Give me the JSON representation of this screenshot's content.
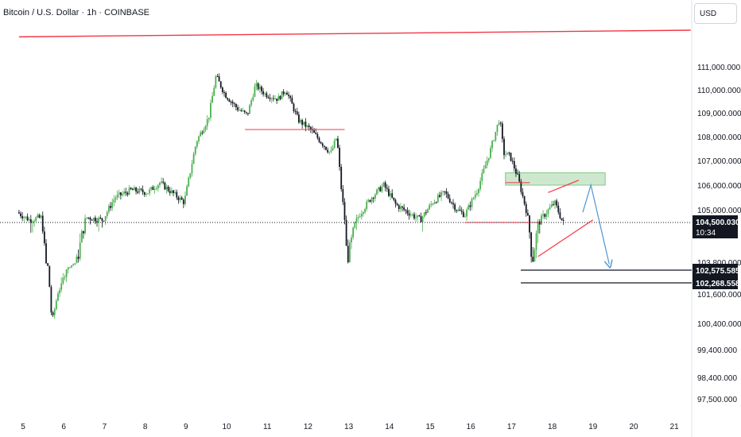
{
  "header": {
    "title": "Bitcoin / U.S. Dollar · 1h · COINBASE"
  },
  "currency": {
    "label": "USD"
  },
  "colors": {
    "up": "#26a69a",
    "down": "#131722",
    "up_body": "#4caf50",
    "trendline": "#f23645",
    "projection": "#5b9bd5",
    "zone": "#a5d6a7"
  },
  "chart_data": {
    "type": "candlestick",
    "symbol": "Bitcoin / U.S. Dollar",
    "interval": "1h",
    "exchange": "COINBASE",
    "x_labels": [
      "5",
      "6",
      "7",
      "8",
      "9",
      "10",
      "11",
      "12",
      "13",
      "14",
      "15",
      "16",
      "17",
      "18",
      "19",
      "20",
      "21"
    ],
    "y_tick_labels": [
      "111,000.000",
      "110,000.000",
      "109,000.000",
      "108,000.000",
      "107,000.000",
      "106,000.000",
      "105,000.000",
      "103,800.000",
      "101,600.000",
      "100,400.000",
      "99,400.000",
      "98,400.000",
      "97,500.000"
    ],
    "ylim": [
      97000,
      112500
    ],
    "price_path": [
      {
        "t": 4.9,
        "p": 104900
      },
      {
        "t": 5.2,
        "p": 104600
      },
      {
        "t": 5.5,
        "p": 104700
      },
      {
        "t": 5.65,
        "p": 103200
      },
      {
        "t": 5.75,
        "p": 100400
      },
      {
        "t": 5.9,
        "p": 101700
      },
      {
        "t": 6.2,
        "p": 103200
      },
      {
        "t": 6.6,
        "p": 104700
      },
      {
        "t": 7.0,
        "p": 104600
      },
      {
        "t": 7.3,
        "p": 105500
      },
      {
        "t": 7.7,
        "p": 105800
      },
      {
        "t": 8.1,
        "p": 105700
      },
      {
        "t": 8.4,
        "p": 106100
      },
      {
        "t": 8.7,
        "p": 105700
      },
      {
        "t": 9.0,
        "p": 105300
      },
      {
        "t": 9.3,
        "p": 107800
      },
      {
        "t": 9.6,
        "p": 108800
      },
      {
        "t": 9.78,
        "p": 110600
      },
      {
        "t": 10.0,
        "p": 109800
      },
      {
        "t": 10.3,
        "p": 109200
      },
      {
        "t": 10.55,
        "p": 108900
      },
      {
        "t": 10.75,
        "p": 110200
      },
      {
        "t": 11.0,
        "p": 109800
      },
      {
        "t": 11.3,
        "p": 109600
      },
      {
        "t": 11.5,
        "p": 110000
      },
      {
        "t": 11.8,
        "p": 108700
      },
      {
        "t": 12.1,
        "p": 108300
      },
      {
        "t": 12.4,
        "p": 107700
      },
      {
        "t": 12.6,
        "p": 107300
      },
      {
        "t": 12.75,
        "p": 108000
      },
      {
        "t": 12.85,
        "p": 106000
      },
      {
        "t": 12.95,
        "p": 104500
      },
      {
        "t": 13.0,
        "p": 103800
      },
      {
        "t": 13.3,
        "p": 104800
      },
      {
        "t": 13.6,
        "p": 105500
      },
      {
        "t": 13.9,
        "p": 106000
      },
      {
        "t": 14.2,
        "p": 105200
      },
      {
        "t": 14.5,
        "p": 104900
      },
      {
        "t": 14.8,
        "p": 104600
      },
      {
        "t": 15.1,
        "p": 105300
      },
      {
        "t": 15.4,
        "p": 105700
      },
      {
        "t": 15.7,
        "p": 105000
      },
      {
        "t": 15.9,
        "p": 104800
      },
      {
        "t": 16.2,
        "p": 105800
      },
      {
        "t": 16.5,
        "p": 107300
      },
      {
        "t": 16.75,
        "p": 108800
      },
      {
        "t": 16.85,
        "p": 107300
      },
      {
        "t": 17.0,
        "p": 107200
      },
      {
        "t": 17.2,
        "p": 106300
      },
      {
        "t": 17.4,
        "p": 105000
      },
      {
        "t": 17.55,
        "p": 103800
      },
      {
        "t": 17.7,
        "p": 104500
      },
      {
        "t": 17.9,
        "p": 104900
      },
      {
        "t": 18.1,
        "p": 105300
      },
      {
        "t": 18.3,
        "p": 104500
      }
    ],
    "annotations": {
      "long_trendline": {
        "start": {
          "t": 4.9,
          "p": 112350
        },
        "end": {
          "t": 21.4,
          "p": 112650
        }
      },
      "support_11": {
        "start": {
          "t": 10.45,
          "p": 108300
        },
        "end": {
          "t": 12.9,
          "p": 108300
        }
      },
      "support_16": {
        "start": {
          "t": 15.85,
          "p": 104500
        },
        "end": {
          "t": 17.7,
          "p": 104500
        }
      },
      "resistance_17": {
        "start": {
          "t": 16.85,
          "p": 106100
        },
        "end": {
          "t": 17.45,
          "p": 106100
        }
      },
      "supply_zone": {
        "t1": 16.85,
        "t2": 19.3,
        "p_low": 106000,
        "p_high": 106500
      },
      "flag_upper": {
        "start": {
          "t": 17.9,
          "p": 105700
        },
        "end": {
          "t": 18.65,
          "p": 106200
        }
      },
      "flag_lower": {
        "start": {
          "t": 17.65,
          "p": 103900
        },
        "end": {
          "t": 19.0,
          "p": 104600
        }
      },
      "projection": [
        {
          "t": 18.75,
          "p": 104900
        },
        {
          "t": 18.95,
          "p": 106000
        },
        {
          "t": 19.4,
          "p": 103500
        }
      ],
      "target_levels": [
        102575.585,
        102268.558
      ]
    },
    "last_price": {
      "value": 104500.03,
      "label": "104,500.030",
      "countdown": "10:34"
    },
    "level_labels": [
      "102,575.585",
      "102,268.558"
    ]
  }
}
